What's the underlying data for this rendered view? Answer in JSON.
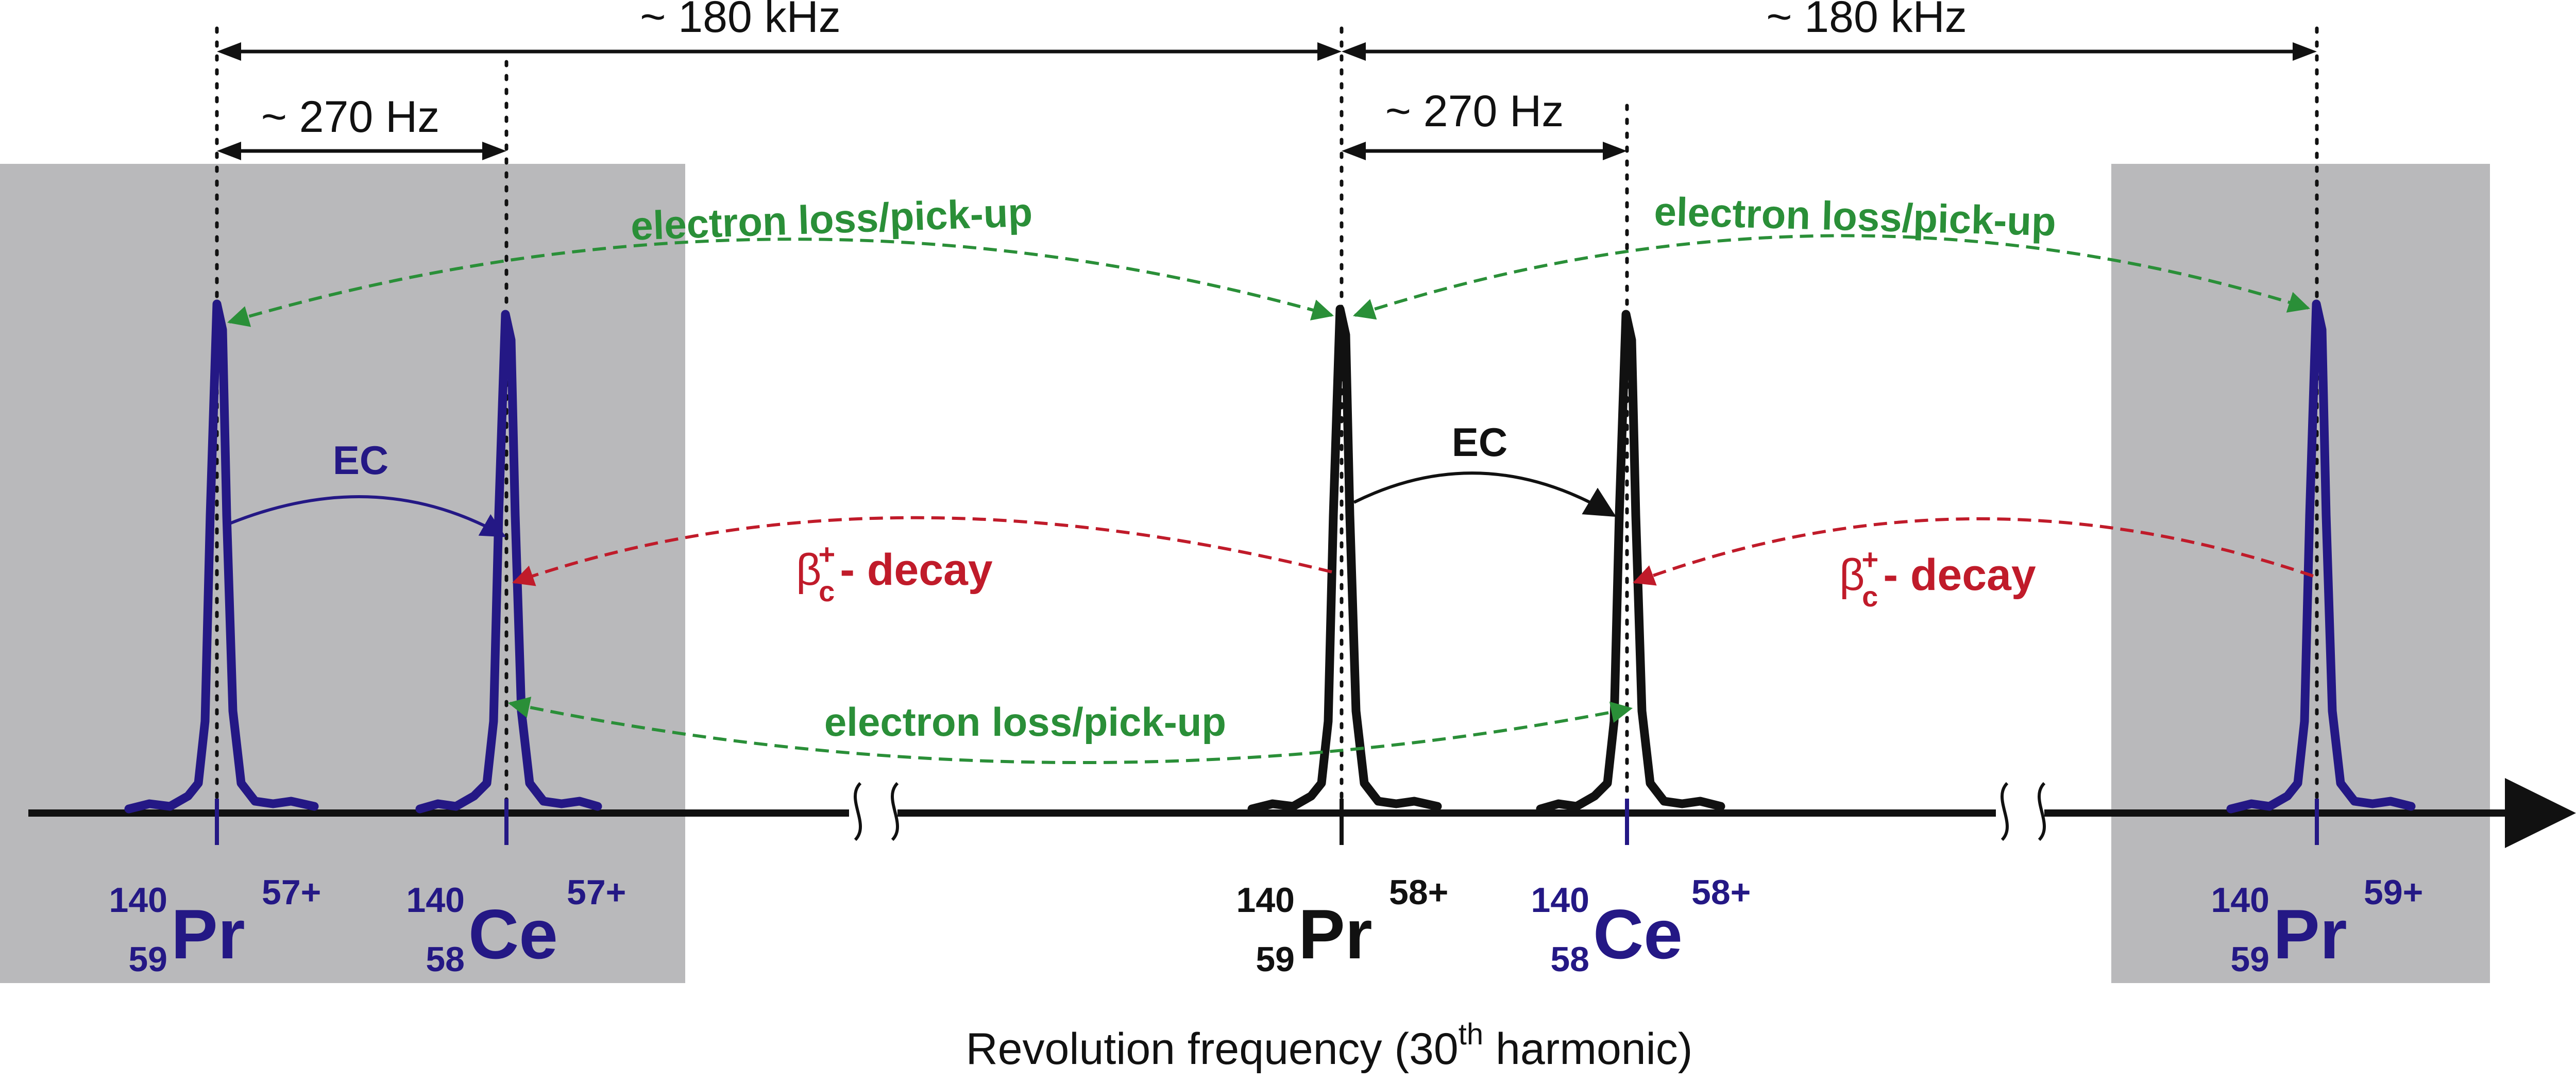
{
  "colors": {
    "blue": "#241885",
    "black": "#111111",
    "green": "#2a8f38",
    "red": "#c01b2a",
    "shade": "#b9b9bb"
  },
  "spacings": {
    "large_left": "~ 180 kHz",
    "large_right": "~ 180 kHz",
    "small_left": "~ 270 Hz",
    "small_right": "~ 270 Hz"
  },
  "transitions": {
    "electron_top_left": "electron loss/pick-up",
    "electron_top_right": "electron loss/pick-up",
    "electron_bottom": "electron loss/pick-up",
    "ec_left": "EC",
    "ec_center": "EC",
    "beta_symbol": "β",
    "beta_sup": "+",
    "beta_sub": "c",
    "beta_rest": "- decay"
  },
  "ions": [
    {
      "mass": "140",
      "z": "59",
      "element": "Pr",
      "charge": "57+"
    },
    {
      "mass": "140",
      "z": "58",
      "element": "Ce",
      "charge": "57+"
    },
    {
      "mass": "140",
      "z": "59",
      "element": "Pr",
      "charge": "58+"
    },
    {
      "mass": "140",
      "z": "58",
      "element": "Ce",
      "charge": "58+"
    },
    {
      "mass": "140",
      "z": "59",
      "element": "Pr",
      "charge": "59+"
    }
  ],
  "axis": {
    "label_main": "Revolution frequency (30",
    "label_sup": "th",
    "label_end": " harmonic)"
  }
}
